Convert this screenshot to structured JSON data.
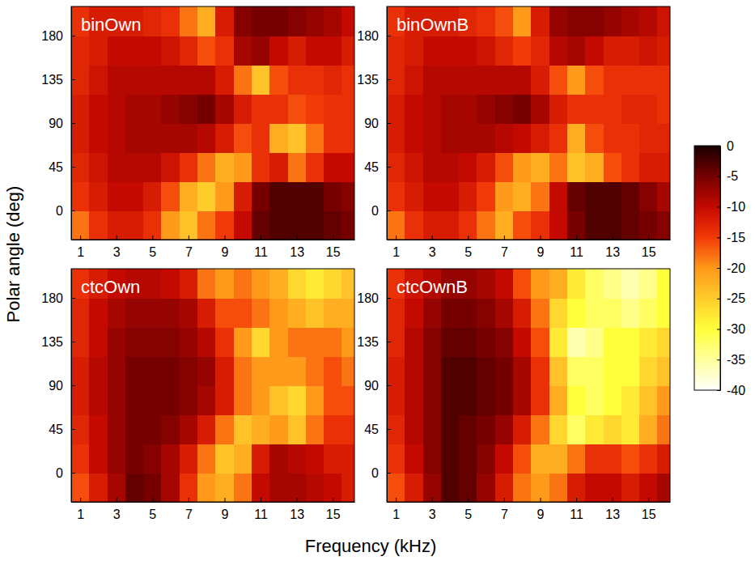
{
  "chart_data": [
    {
      "type": "heatmap",
      "title": "binOwn",
      "x": [
        1,
        2,
        3,
        4,
        5,
        6,
        7,
        8,
        9,
        10,
        11,
        12,
        13,
        14,
        15,
        16
      ],
      "y": [
        -15,
        15,
        45,
        75,
        105,
        135,
        165,
        195
      ],
      "xlim": [
        0.5,
        16.2
      ],
      "ylim": [
        -30,
        210
      ],
      "xticks": [
        1,
        3,
        5,
        7,
        9,
        11,
        13,
        15
      ],
      "yticks": [
        0,
        45,
        90,
        135,
        180
      ],
      "values": [
        [
          -18,
          -14,
          -12,
          -12,
          -14,
          -20,
          -24,
          -18,
          -15,
          -10,
          -4,
          -3,
          -3,
          -3,
          -4,
          -5
        ],
        [
          -14,
          -12,
          -10,
          -10,
          -12,
          -16,
          -22,
          -25,
          -20,
          -12,
          -5,
          -3,
          -3,
          -3,
          -5,
          -6
        ],
        [
          -13,
          -11,
          -9,
          -9,
          -9,
          -11,
          -14,
          -18,
          -22,
          -20,
          -14,
          -12,
          -18,
          -14,
          -10,
          -10
        ],
        [
          -12,
          -10,
          -9,
          -8,
          -8,
          -8,
          -8,
          -9,
          -12,
          -16,
          -14,
          -22,
          -24,
          -18,
          -14,
          -14
        ],
        [
          -12,
          -10,
          -9,
          -8,
          -8,
          -7,
          -6,
          -5,
          -8,
          -12,
          -14,
          -14,
          -16,
          -15,
          -14,
          -14
        ],
        [
          -13,
          -11,
          -9,
          -9,
          -9,
          -9,
          -9,
          -9,
          -12,
          -18,
          -24,
          -16,
          -14,
          -14,
          -13,
          -14
        ],
        [
          -13,
          -12,
          -10,
          -10,
          -10,
          -11,
          -13,
          -16,
          -14,
          -8,
          -7,
          -10,
          -12,
          -10,
          -10,
          -12
        ],
        [
          -14,
          -12,
          -12,
          -12,
          -13,
          -14,
          -18,
          -22,
          -12,
          -6,
          -5,
          -5,
          -6,
          -7,
          -8,
          -10
        ]
      ]
    },
    {
      "type": "heatmap",
      "title": "binOwnB",
      "x": [
        1,
        2,
        3,
        4,
        5,
        6,
        7,
        8,
        9,
        10,
        11,
        12,
        13,
        14,
        15,
        16
      ],
      "y": [
        -15,
        15,
        45,
        75,
        105,
        135,
        165,
        195
      ],
      "xlim": [
        0.5,
        16.2
      ],
      "ylim": [
        -30,
        210
      ],
      "xticks": [
        1,
        3,
        5,
        7,
        9,
        11,
        13,
        15
      ],
      "yticks": [
        0,
        45,
        90,
        135,
        180
      ],
      "values": [
        [
          -18,
          -14,
          -12,
          -12,
          -14,
          -18,
          -22,
          -16,
          -14,
          -10,
          -5,
          -3,
          -3,
          -4,
          -5,
          -6
        ],
        [
          -14,
          -12,
          -10,
          -10,
          -12,
          -15,
          -20,
          -22,
          -18,
          -10,
          -4,
          -3,
          -3,
          -4,
          -6,
          -8
        ],
        [
          -13,
          -11,
          -9,
          -9,
          -10,
          -12,
          -16,
          -20,
          -22,
          -18,
          -24,
          -22,
          -16,
          -14,
          -12,
          -12
        ],
        [
          -12,
          -10,
          -9,
          -8,
          -8,
          -8,
          -9,
          -10,
          -12,
          -14,
          -22,
          -16,
          -14,
          -14,
          -13,
          -13
        ],
        [
          -12,
          -10,
          -9,
          -8,
          -8,
          -7,
          -6,
          -5,
          -8,
          -12,
          -14,
          -14,
          -14,
          -13,
          -13,
          -14
        ],
        [
          -13,
          -11,
          -9,
          -9,
          -9,
          -9,
          -9,
          -9,
          -12,
          -16,
          -20,
          -16,
          -14,
          -14,
          -14,
          -14
        ],
        [
          -13,
          -12,
          -10,
          -10,
          -10,
          -11,
          -13,
          -15,
          -13,
          -9,
          -8,
          -10,
          -12,
          -12,
          -11,
          -12
        ],
        [
          -14,
          -12,
          -12,
          -12,
          -13,
          -14,
          -16,
          -20,
          -12,
          -7,
          -6,
          -6,
          -7,
          -8,
          -9,
          -11
        ]
      ]
    },
    {
      "type": "heatmap",
      "title": "ctcOwn",
      "x": [
        1,
        2,
        3,
        4,
        5,
        6,
        7,
        8,
        9,
        10,
        11,
        12,
        13,
        14,
        15,
        16
      ],
      "y": [
        -15,
        15,
        45,
        75,
        105,
        135,
        165,
        195
      ],
      "xlim": [
        0.5,
        16.2
      ],
      "ylim": [
        -30,
        210
      ],
      "xticks": [
        1,
        3,
        5,
        7,
        9,
        11,
        13,
        15
      ],
      "yticks": [
        0,
        45,
        90,
        135,
        180
      ],
      "values": [
        [
          -16,
          -12,
          -8,
          -4,
          -5,
          -8,
          -14,
          -20,
          -22,
          -18,
          -10,
          -8,
          -8,
          -9,
          -10,
          -12
        ],
        [
          -14,
          -10,
          -7,
          -5,
          -6,
          -8,
          -12,
          -18,
          -24,
          -22,
          -12,
          -8,
          -9,
          -10,
          -12,
          -12
        ],
        [
          -13,
          -10,
          -7,
          -5,
          -5,
          -6,
          -8,
          -12,
          -18,
          -24,
          -22,
          -20,
          -24,
          -18,
          -14,
          -14
        ],
        [
          -12,
          -9,
          -7,
          -5,
          -5,
          -5,
          -6,
          -8,
          -12,
          -18,
          -20,
          -24,
          -26,
          -20,
          -16,
          -16
        ],
        [
          -12,
          -9,
          -7,
          -5,
          -5,
          -5,
          -6,
          -7,
          -12,
          -18,
          -20,
          -20,
          -20,
          -18,
          -16,
          -18
        ],
        [
          -13,
          -10,
          -7,
          -6,
          -6,
          -6,
          -7,
          -9,
          -14,
          -20,
          -26,
          -20,
          -18,
          -18,
          -18,
          -20
        ],
        [
          -13,
          -10,
          -8,
          -7,
          -7,
          -7,
          -8,
          -12,
          -16,
          -16,
          -18,
          -20,
          -22,
          -24,
          -22,
          -22
        ],
        [
          -14,
          -12,
          -10,
          -9,
          -9,
          -10,
          -12,
          -18,
          -20,
          -18,
          -20,
          -22,
          -26,
          -28,
          -26,
          -24
        ]
      ]
    },
    {
      "type": "heatmap",
      "title": "ctcOwnB",
      "x": [
        1,
        2,
        3,
        4,
        5,
        6,
        7,
        8,
        9,
        10,
        11,
        12,
        13,
        14,
        15,
        16
      ],
      "y": [
        -15,
        15,
        45,
        75,
        105,
        135,
        165,
        195
      ],
      "xlim": [
        0.5,
        16.2
      ],
      "ylim": [
        -30,
        210
      ],
      "xticks": [
        1,
        3,
        5,
        7,
        9,
        11,
        13,
        15
      ],
      "yticks": [
        0,
        45,
        90,
        135,
        180
      ],
      "values": [
        [
          -16,
          -12,
          -7,
          -3,
          -4,
          -7,
          -12,
          -18,
          -20,
          -18,
          -12,
          -10,
          -10,
          -12,
          -10,
          -8
        ],
        [
          -14,
          -10,
          -6,
          -3,
          -4,
          -6,
          -10,
          -16,
          -22,
          -22,
          -18,
          -14,
          -14,
          -16,
          -14,
          -12
        ],
        [
          -13,
          -9,
          -6,
          -3,
          -4,
          -5,
          -7,
          -12,
          -18,
          -26,
          -32,
          -28,
          -26,
          -28,
          -22,
          -18
        ],
        [
          -12,
          -9,
          -6,
          -3,
          -3,
          -4,
          -5,
          -8,
          -14,
          -22,
          -30,
          -32,
          -30,
          -28,
          -24,
          -20
        ],
        [
          -12,
          -9,
          -6,
          -3,
          -3,
          -4,
          -5,
          -8,
          -14,
          -24,
          -32,
          -32,
          -30,
          -30,
          -26,
          -24
        ],
        [
          -13,
          -9,
          -6,
          -4,
          -4,
          -5,
          -6,
          -10,
          -16,
          -28,
          -36,
          -34,
          -30,
          -30,
          -28,
          -26
        ],
        [
          -13,
          -10,
          -7,
          -5,
          -5,
          -6,
          -8,
          -12,
          -18,
          -26,
          -30,
          -32,
          -32,
          -34,
          -32,
          -30
        ],
        [
          -14,
          -11,
          -9,
          -7,
          -7,
          -8,
          -10,
          -16,
          -20,
          -22,
          -28,
          -32,
          -34,
          -36,
          -34,
          -30
        ]
      ]
    }
  ],
  "xlabel": "Frequency (kHz)",
  "ylabel": "Polar angle (deg)",
  "colorbar": {
    "range": [
      -40,
      0
    ],
    "ticks": [
      0,
      -5,
      -10,
      -15,
      -20,
      -25,
      -30,
      -35,
      -40
    ]
  }
}
